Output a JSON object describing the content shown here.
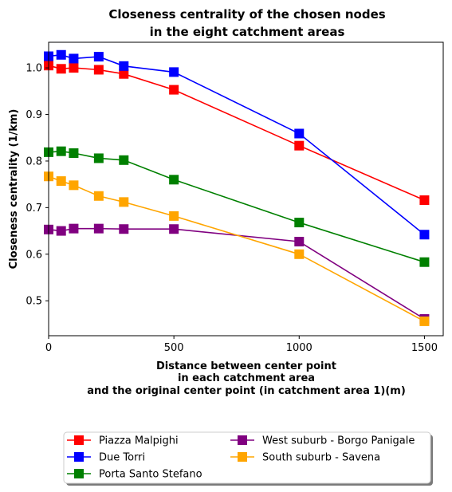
{
  "chart_data": {
    "type": "line",
    "title": [
      "Closeness centrality of the chosen nodes",
      "in the eight catchment areas"
    ],
    "xlabel": [
      "Distance between center point",
      "in each catchment area",
      "and the original center point (in catchment area 1)(m)"
    ],
    "ylabel": "Closeness centrality (1/km)",
    "xlim": [
      0,
      1575
    ],
    "ylim": [
      0.425,
      1.055
    ],
    "xticks": [
      0,
      500,
      1000,
      1500
    ],
    "xtick_labels": [
      "0",
      "500",
      "1000",
      "1500"
    ],
    "yticks": [
      0.5,
      0.6,
      0.7,
      0.8,
      0.9,
      1.0
    ],
    "ytick_labels": [
      "0.5",
      "0.6",
      "0.7",
      "0.8",
      "0.9",
      "1.0"
    ],
    "grid": false,
    "legend_position": "bottom-center",
    "series": [
      {
        "name": "Piazza Malpighi",
        "color": "#ff0000",
        "x": [
          0,
          50,
          100,
          200,
          300,
          500,
          1000,
          1500
        ],
        "y": [
          1.005,
          0.998,
          1.0,
          0.996,
          0.987,
          0.953,
          0.833,
          0.716
        ]
      },
      {
        "name": "Due Torri",
        "color": "#0000ff",
        "x": [
          0,
          50,
          100,
          200,
          300,
          500,
          1000,
          1500
        ],
        "y": [
          1.025,
          1.028,
          1.02,
          1.024,
          1.004,
          0.991,
          0.859,
          0.642
        ]
      },
      {
        "name": "Porta Santo Stefano",
        "color": "#008000",
        "x": [
          0,
          50,
          100,
          200,
          300,
          500,
          1000,
          1500
        ],
        "y": [
          0.819,
          0.821,
          0.817,
          0.806,
          0.802,
          0.76,
          0.668,
          0.583
        ]
      },
      {
        "name": "West suburb - Borgo Panigale",
        "color": "#800080",
        "x": [
          0,
          50,
          100,
          200,
          300,
          500,
          1000,
          1500
        ],
        "y": [
          0.653,
          0.65,
          0.655,
          0.655,
          0.654,
          0.654,
          0.627,
          0.461
        ]
      },
      {
        "name": "South suburb - Savena",
        "color": "#ffa500",
        "x": [
          0,
          50,
          100,
          200,
          300,
          500,
          1000,
          1500
        ],
        "y": [
          0.767,
          0.757,
          0.748,
          0.725,
          0.712,
          0.682,
          0.6,
          0.456
        ]
      }
    ]
  }
}
